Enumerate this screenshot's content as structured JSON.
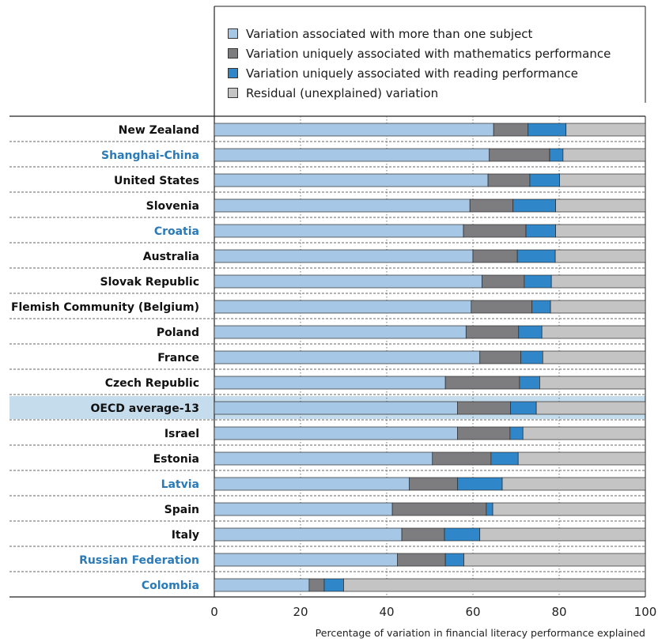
{
  "chart_data": {
    "type": "bar",
    "orientation": "horizontal",
    "stacked": true,
    "xlabel": "Percentage of variation in financial literacy performance explained",
    "xlim": [
      0,
      100
    ],
    "xticks": [
      0,
      20,
      40,
      60,
      80,
      100
    ],
    "legend_position": "top",
    "colors": {
      "shared": "#a6c8e6",
      "math": "#7d7d80",
      "reading": "#2f86c8",
      "residual": "#c4c4c4",
      "oecd_highlight": "#c5dcec",
      "partner_label": "#2a7ab8",
      "oecd_label": "#111111"
    },
    "series": [
      {
        "key": "shared",
        "name": "Variation associated with more than one subject"
      },
      {
        "key": "math",
        "name": "Variation uniquely associated with mathematics performance"
      },
      {
        "key": "reading",
        "name": "Variation uniquely associated with reading performance"
      },
      {
        "key": "residual",
        "name": "Residual (unexplained) variation"
      }
    ],
    "categories": [
      {
        "label": "New Zealand",
        "kind": "oecd",
        "values": [
          64.8,
          8.0,
          8.8,
          18.4
        ]
      },
      {
        "label": "Shanghai-China",
        "kind": "partner",
        "values": [
          63.8,
          14.0,
          3.1,
          19.1
        ]
      },
      {
        "label": "United States",
        "kind": "oecd",
        "values": [
          63.5,
          9.7,
          6.9,
          19.9
        ]
      },
      {
        "label": "Slovenia",
        "kind": "oecd",
        "values": [
          59.3,
          10.0,
          9.9,
          20.8
        ]
      },
      {
        "label": "Croatia",
        "kind": "partner",
        "values": [
          57.8,
          14.5,
          6.9,
          20.8
        ]
      },
      {
        "label": "Australia",
        "kind": "oecd",
        "values": [
          60.0,
          10.3,
          8.8,
          20.9
        ]
      },
      {
        "label": "Slovak Republic",
        "kind": "oecd",
        "values": [
          62.1,
          9.8,
          6.3,
          21.8
        ]
      },
      {
        "label": "Flemish Community (Belgium)",
        "kind": "oecd",
        "values": [
          59.6,
          14.1,
          4.3,
          22.0
        ]
      },
      {
        "label": "Poland",
        "kind": "oecd",
        "values": [
          58.4,
          12.2,
          5.4,
          24.0
        ]
      },
      {
        "label": "France",
        "kind": "oecd",
        "values": [
          61.6,
          9.5,
          5.1,
          23.8
        ]
      },
      {
        "label": "Czech Republic",
        "kind": "oecd",
        "values": [
          53.6,
          17.2,
          4.7,
          24.5
        ]
      },
      {
        "label": "OECD average-13",
        "kind": "average",
        "values": [
          56.4,
          12.3,
          6.0,
          25.3
        ]
      },
      {
        "label": "Israel",
        "kind": "oecd",
        "values": [
          56.4,
          12.2,
          3.0,
          28.4
        ]
      },
      {
        "label": "Estonia",
        "kind": "oecd",
        "values": [
          50.6,
          13.6,
          6.3,
          29.5
        ]
      },
      {
        "label": "Latvia",
        "kind": "partner",
        "values": [
          45.2,
          11.2,
          10.4,
          33.2
        ]
      },
      {
        "label": "Spain",
        "kind": "oecd",
        "values": [
          41.3,
          21.8,
          1.5,
          35.4
        ]
      },
      {
        "label": "Italy",
        "kind": "oecd",
        "values": [
          43.5,
          9.9,
          8.2,
          38.4
        ]
      },
      {
        "label": "Russian Federation",
        "kind": "partner",
        "values": [
          42.5,
          11.1,
          4.3,
          42.1
        ]
      },
      {
        "label": "Colombia",
        "kind": "partner",
        "values": [
          22.0,
          3.5,
          4.5,
          70.0
        ]
      }
    ]
  }
}
